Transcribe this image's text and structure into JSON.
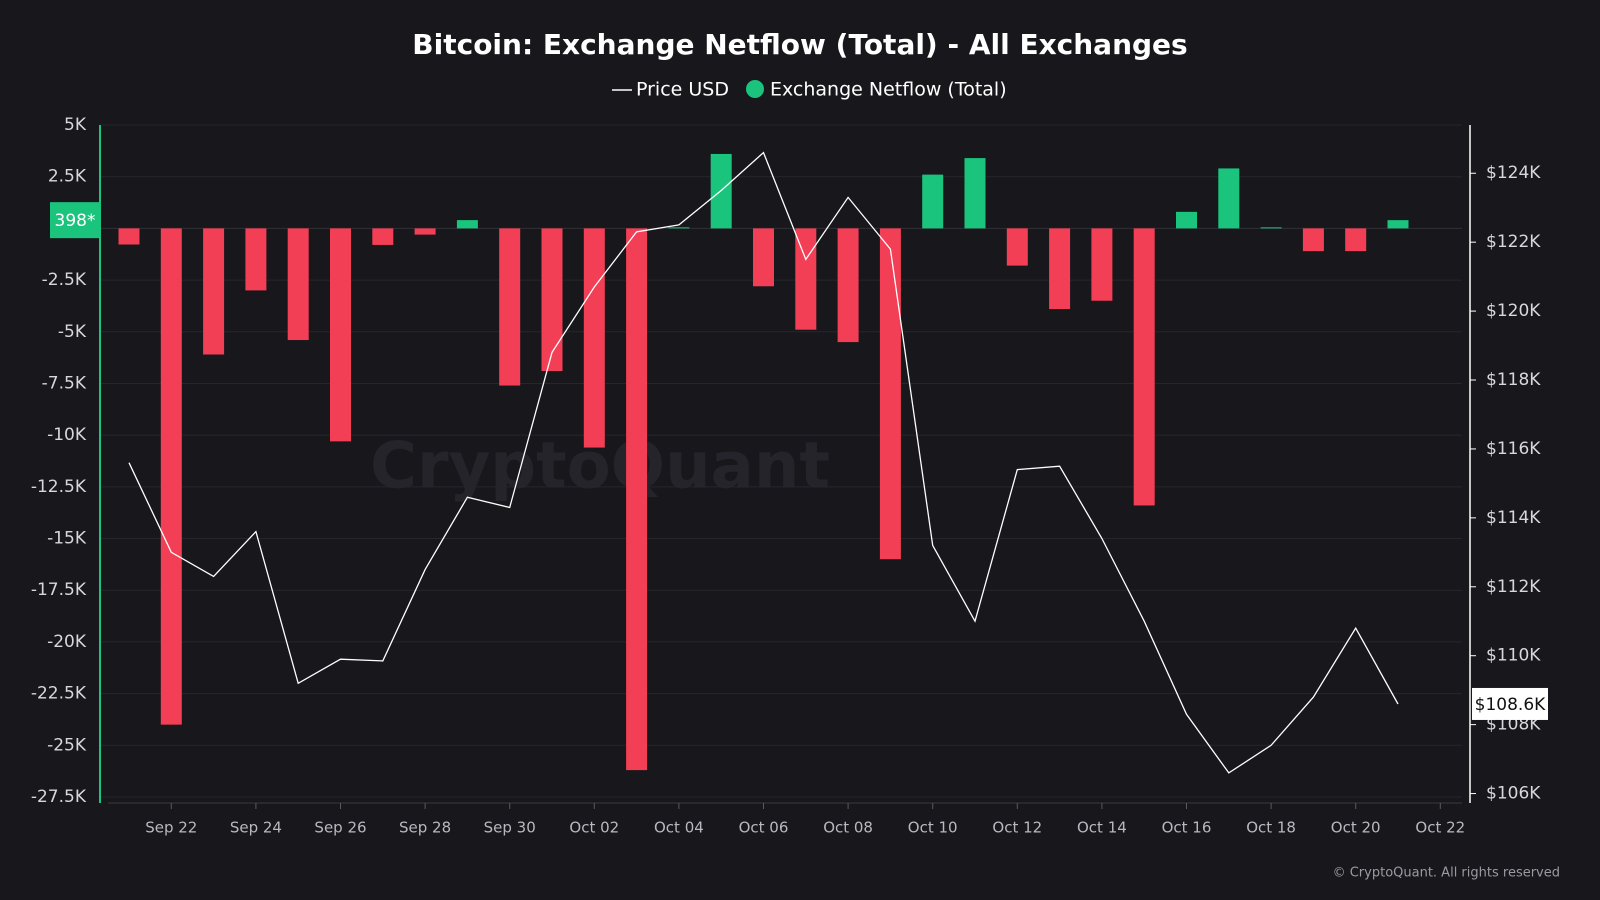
{
  "chart_data": {
    "type": "bar",
    "title": "Bitcoin: Exchange Netflow (Total) - All Exchanges",
    "watermark": "CryptoQuant",
    "footer": "© CryptoQuant. All rights reserved",
    "categories": [
      null,
      "Sep 22",
      null,
      "Sep 24",
      null,
      "Sep 26",
      null,
      "Sep 28",
      null,
      "Sep 30",
      null,
      "Oct 02",
      null,
      "Oct 04",
      null,
      "Oct 06",
      null,
      "Oct 08",
      null,
      "Oct 10",
      null,
      "Oct 12",
      null,
      "Oct 14",
      null,
      "Oct 16",
      null,
      "Oct 18",
      null,
      "Oct 20",
      null,
      "Oct 22"
    ],
    "series": [
      {
        "name": "Price USD",
        "type": "line",
        "axis": "y2",
        "color": "#ffffff",
        "values": [
          115600,
          113000,
          112300,
          113600,
          109200,
          109900,
          109850,
          112500,
          114600,
          114300,
          118800,
          120700,
          122300,
          122500,
          123500,
          124600,
          121500,
          123300,
          121800,
          113200,
          111000,
          115400,
          115500,
          113400,
          111000,
          108300,
          106600,
          107400,
          108800,
          110800,
          108600,
          null
        ]
      },
      {
        "name": "Exchange Netflow (Total)",
        "type": "bar",
        "color": "#1bc47d",
        "negative_color": "#f23f55",
        "values": [
          -780,
          -24000,
          -6100,
          -3000,
          -5400,
          -10300,
          -800,
          -300,
          400,
          -7600,
          -6900,
          -10600,
          -26200,
          50,
          3600,
          -2800,
          -4900,
          -5500,
          -16000,
          2600,
          3400,
          -1800,
          -3900,
          -3500,
          -13400,
          800,
          2900,
          50,
          -1100,
          -1100,
          398,
          null
        ]
      }
    ],
    "current_labels": {
      "netflow": "398*",
      "price": "$108.6K"
    },
    "ylim": [
      -27500,
      5000
    ],
    "yticks": [
      {
        "value": 5000,
        "label": "5K"
      },
      {
        "value": 2500,
        "label": "2.5K"
      },
      {
        "value": -2500,
        "label": "-2.5K"
      },
      {
        "value": -5000,
        "label": "-5K"
      },
      {
        "value": -7500,
        "label": "-7.5K"
      },
      {
        "value": -10000,
        "label": "-10K"
      },
      {
        "value": -12500,
        "label": "-12.5K"
      },
      {
        "value": -15000,
        "label": "-15K"
      },
      {
        "value": -17500,
        "label": "-17.5K"
      },
      {
        "value": -20000,
        "label": "-20K"
      },
      {
        "value": -22500,
        "label": "-22.5K"
      },
      {
        "value": -25000,
        "label": "-25K"
      },
      {
        "value": -27500,
        "label": "-27.5K"
      }
    ],
    "y2lim": [
      105900,
      125400
    ],
    "y2ticks": [
      {
        "value": 124000,
        "label": "$124K"
      },
      {
        "value": 122000,
        "label": "$122K"
      },
      {
        "value": 120000,
        "label": "$120K"
      },
      {
        "value": 118000,
        "label": "$118K"
      },
      {
        "value": 116000,
        "label": "$116K"
      },
      {
        "value": 114000,
        "label": "$114K"
      },
      {
        "value": 112000,
        "label": "$112K"
      },
      {
        "value": 110000,
        "label": "$110K"
      },
      {
        "value": 108000,
        "label": "$108K"
      },
      {
        "value": 106000,
        "label": "$106K"
      }
    ],
    "grid": true
  }
}
